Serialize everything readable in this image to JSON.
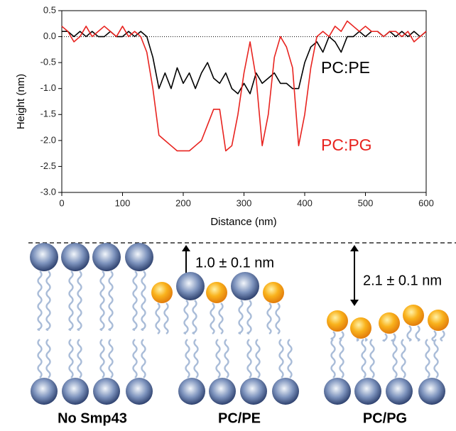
{
  "chart_data": {
    "type": "line",
    "xlabel": "Distance (nm)",
    "ylabel": "Height (nm)",
    "x": [
      0,
      10,
      20,
      30,
      40,
      50,
      60,
      70,
      80,
      90,
      100,
      110,
      120,
      130,
      140,
      150,
      160,
      170,
      180,
      190,
      200,
      210,
      220,
      230,
      240,
      250,
      260,
      270,
      280,
      290,
      300,
      310,
      320,
      330,
      340,
      350,
      360,
      370,
      380,
      390,
      400,
      410,
      420,
      430,
      440,
      450,
      460,
      470,
      480,
      490,
      500,
      510,
      520,
      530,
      540,
      550,
      560,
      570,
      580,
      590,
      600
    ],
    "series": [
      {
        "name": "PC:PE",
        "color": "#000000",
        "values": [
          0.1,
          0.1,
          0.0,
          0.1,
          0.0,
          0.1,
          0.0,
          0.0,
          0.1,
          0.0,
          0.0,
          0.1,
          0.0,
          0.1,
          0.0,
          -0.4,
          -1.0,
          -0.7,
          -1.0,
          -0.6,
          -0.9,
          -0.7,
          -1.0,
          -0.7,
          -0.5,
          -0.8,
          -0.9,
          -0.7,
          -1.0,
          -1.1,
          -0.9,
          -1.1,
          -0.7,
          -0.9,
          -0.8,
          -0.7,
          -0.9,
          -0.9,
          -1.0,
          -1.0,
          -0.5,
          -0.2,
          -0.1,
          -0.3,
          0.0,
          -0.1,
          -0.3,
          0.0,
          0.0,
          0.1,
          0.0,
          0.1,
          0.1,
          0.0,
          0.1,
          0.0,
          0.1,
          0.0,
          0.1,
          0.0,
          0.1
        ]
      },
      {
        "name": "PC:PG",
        "color": "#e8231f",
        "values": [
          0.2,
          0.1,
          -0.1,
          0.0,
          0.2,
          0.0,
          0.1,
          0.2,
          0.1,
          0.0,
          0.2,
          0.0,
          0.1,
          0.0,
          -0.3,
          -1.0,
          -1.9,
          -2.0,
          -2.1,
          -2.2,
          -2.2,
          -2.2,
          -2.1,
          -2.0,
          -1.7,
          -1.4,
          -1.4,
          -2.2,
          -2.1,
          -1.5,
          -0.7,
          -0.1,
          -0.8,
          -2.1,
          -1.5,
          -0.4,
          0.0,
          -0.2,
          -0.6,
          -2.1,
          -1.5,
          -0.6,
          0.0,
          0.1,
          0.0,
          0.2,
          0.1,
          0.3,
          0.2,
          0.1,
          0.2,
          0.1,
          0.1,
          0.0,
          0.1,
          0.1,
          0.0,
          0.1,
          -0.1,
          0.0,
          0.1
        ]
      }
    ],
    "xlim": [
      0,
      600
    ],
    "xticks": [
      0,
      100,
      200,
      300,
      400,
      500,
      600
    ],
    "ylim": [
      -3,
      0.5
    ],
    "yticks": [
      {
        "value": -3,
        "label": "-3.0"
      },
      -2.5,
      {
        "value": -2,
        "label": "-2.0"
      },
      -1.5,
      {
        "value": -1,
        "label": "-1.0"
      },
      -0.5,
      {
        "value": 0,
        "label": "0.0"
      },
      0.5
    ],
    "zero_line": true
  },
  "diagram": {
    "gap_labels": [
      "1.0 ± 0.1 nm",
      "2.1 ± 0.1 nm"
    ],
    "panel_labels": [
      "No Smp43",
      "PC/PE",
      "PC/PG"
    ]
  }
}
